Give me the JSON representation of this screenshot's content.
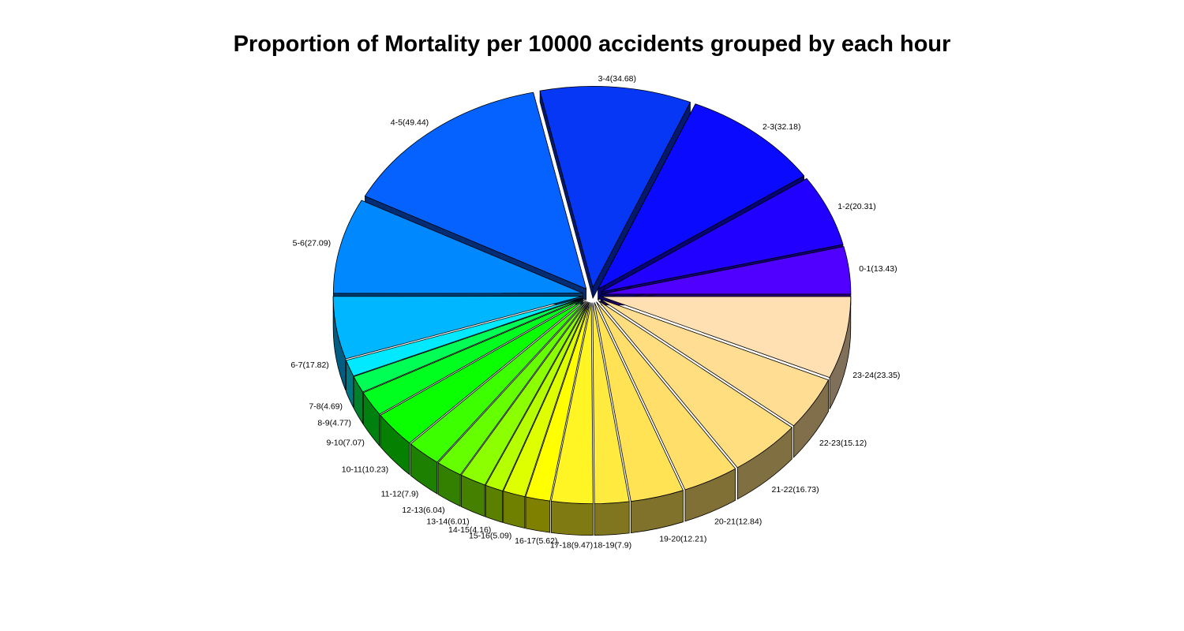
{
  "chart_data": {
    "type": "pie",
    "title": "Proportion of Mortality per 10000 accidents grouped by each hour",
    "slices": [
      {
        "label": "0-1(13.43)",
        "value": 13.43,
        "color": "#4F00FF"
      },
      {
        "label": "1-2(20.31)",
        "value": 20.31,
        "color": "#2200FF"
      },
      {
        "label": "2-3(32.18)",
        "value": 32.18,
        "color": "#0A0AFF"
      },
      {
        "label": "3-4(34.68)",
        "value": 34.68,
        "color": "#0537F5"
      },
      {
        "label": "4-5(49.44)",
        "value": 49.44,
        "color": "#0562FF"
      },
      {
        "label": "5-6(27.09)",
        "value": 27.09,
        "color": "#0088FF"
      },
      {
        "label": "6-7(17.82)",
        "value": 17.82,
        "color": "#00B7FF"
      },
      {
        "label": "7-8(4.69)",
        "value": 4.69,
        "color": "#00E9FF"
      },
      {
        "label": "8-9(4.77)",
        "value": 4.77,
        "color": "#00FF55"
      },
      {
        "label": "9-10(7.07)",
        "value": 7.07,
        "color": "#00FF1E"
      },
      {
        "label": "10-11(10.23)",
        "value": 10.23,
        "color": "#0AFF00"
      },
      {
        "label": "11-12(7.9)",
        "value": 7.9,
        "color": "#3CFF00"
      },
      {
        "label": "12-13(6.04)",
        "value": 6.04,
        "color": "#66FF00"
      },
      {
        "label": "13-14(6.01)",
        "value": 6.01,
        "color": "#8CFF00"
      },
      {
        "label": "14-15(4.16)",
        "value": 4.16,
        "color": "#B5FF00"
      },
      {
        "label": "15-16(5.09)",
        "value": 5.09,
        "color": "#DDFF00"
      },
      {
        "label": "16-17(5.62)",
        "value": 5.62,
        "color": "#FFFF00"
      },
      {
        "label": "17-18(9.47)",
        "value": 9.47,
        "color": "#FFF424"
      },
      {
        "label": "18-19(7.9)",
        "value": 7.9,
        "color": "#FFEB40"
      },
      {
        "label": "19-20(12.21)",
        "value": 12.21,
        "color": "#FFE355"
      },
      {
        "label": "20-21(12.84)",
        "value": 12.84,
        "color": "#FFDF6A"
      },
      {
        "label": "21-22(16.73)",
        "value": 16.73,
        "color": "#FFDE80"
      },
      {
        "label": "22-23(15.12)",
        "value": 15.12,
        "color": "#FFDE94"
      },
      {
        "label": "23-24(23.35)",
        "value": 23.35,
        "color": "#FFE0B3"
      }
    ]
  }
}
